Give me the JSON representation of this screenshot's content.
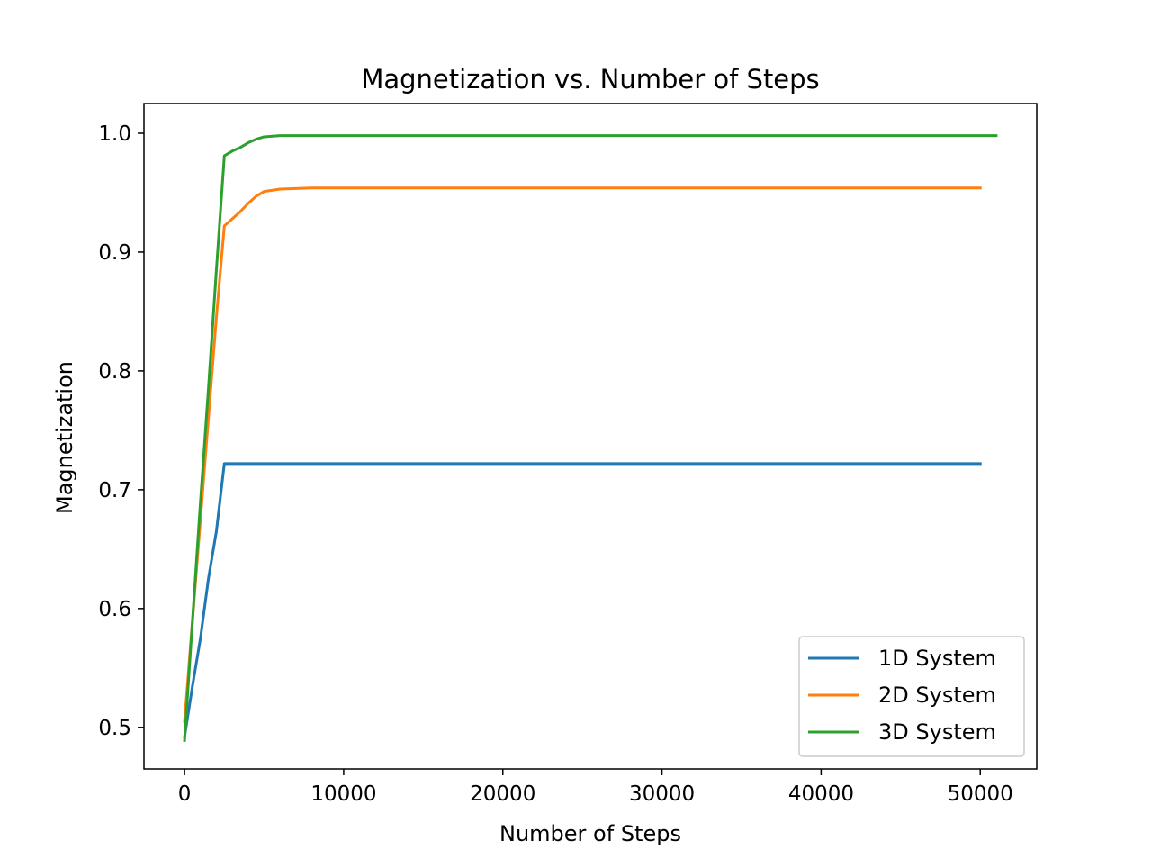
{
  "chart_data": {
    "type": "line",
    "title": "Magnetization vs. Number of Steps",
    "xlabel": "Number of Steps",
    "ylabel": "Magnetization",
    "xlim": [
      -2550,
      53550
    ],
    "ylim": [
      0.465,
      1.025
    ],
    "xticks": [
      0,
      10000,
      20000,
      30000,
      40000,
      50000
    ],
    "xtick_labels": [
      "0",
      "10000",
      "20000",
      "30000",
      "40000",
      "50000"
    ],
    "yticks": [
      0.5,
      0.6,
      0.7,
      0.8,
      0.9,
      1.0
    ],
    "ytick_labels": [
      "0.5",
      "0.6",
      "0.7",
      "0.8",
      "0.9",
      "1.0"
    ],
    "grid": false,
    "legend_position": "lower-right",
    "series": [
      {
        "name": "1D System",
        "color": "#1f77b4",
        "x": [
          0,
          500,
          1000,
          1500,
          2000,
          2500,
          3000,
          10000,
          20000,
          30000,
          40000,
          50000
        ],
        "y": [
          0.492,
          0.535,
          0.575,
          0.625,
          0.665,
          0.722,
          0.722,
          0.722,
          0.722,
          0.722,
          0.722,
          0.722
        ]
      },
      {
        "name": "2D System",
        "color": "#ff7f0e",
        "x": [
          0,
          500,
          1000,
          1500,
          2000,
          2500,
          3000,
          3500,
          4000,
          4500,
          5000,
          6000,
          8000,
          10000,
          20000,
          30000,
          40000,
          50000
        ],
        "y": [
          0.505,
          0.59,
          0.675,
          0.76,
          0.845,
          0.922,
          0.928,
          0.934,
          0.941,
          0.947,
          0.951,
          0.953,
          0.954,
          0.954,
          0.954,
          0.954,
          0.954,
          0.954
        ]
      },
      {
        "name": "3D System",
        "color": "#2ca02c",
        "x": [
          0,
          500,
          1000,
          1500,
          2000,
          2500,
          3000,
          3500,
          4000,
          4500,
          5000,
          6000,
          8000,
          10000,
          20000,
          30000,
          40000,
          51000
        ],
        "y": [
          0.489,
          0.59,
          0.69,
          0.785,
          0.885,
          0.981,
          0.985,
          0.988,
          0.992,
          0.995,
          0.997,
          0.998,
          0.998,
          0.998,
          0.998,
          0.998,
          0.998,
          0.998
        ]
      }
    ]
  }
}
